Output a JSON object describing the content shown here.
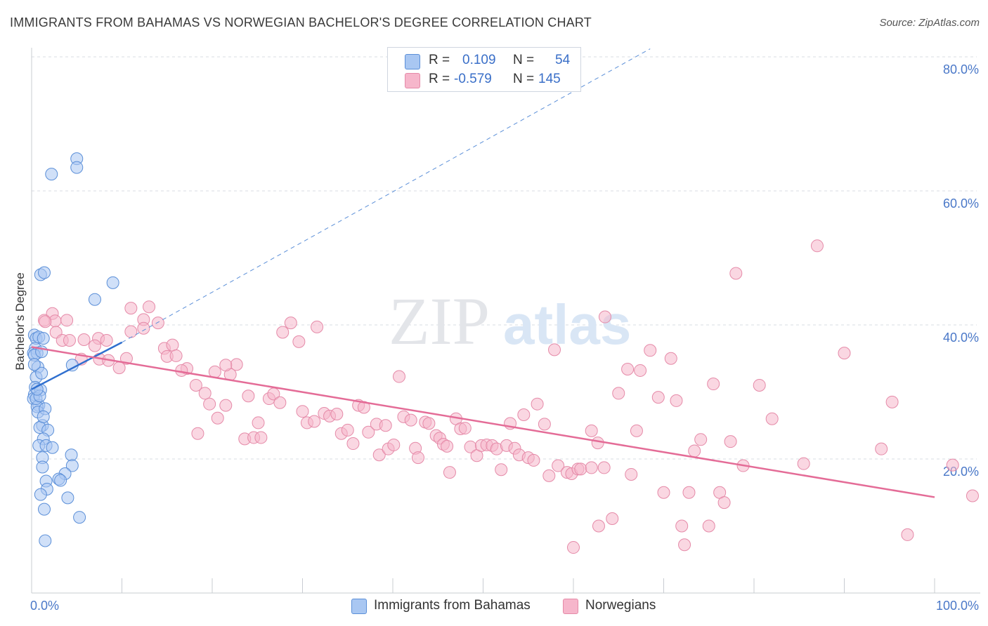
{
  "header": {
    "title": "IMMIGRANTS FROM BAHAMAS VS NORWEGIAN BACHELOR'S DEGREE CORRELATION CHART",
    "source": "Source: ZipAtlas.com"
  },
  "watermark": {
    "part1": "ZIP",
    "part2": "atlas"
  },
  "legend": {
    "r_label": "R =",
    "n_label": "N =",
    "rows": [
      {
        "r": "0.109",
        "n": "54",
        "color": "#a9c7f2"
      },
      {
        "r": "-0.579",
        "n": "145",
        "color": "#f6b6cb"
      }
    ]
  },
  "bottom_legend": [
    {
      "label": "Immigrants from Bahamas",
      "color": "#a9c7f2"
    },
    {
      "label": "Norwegians",
      "color": "#f6b6cb"
    }
  ],
  "colors": {
    "blue_fill": "#a9c7f2",
    "blue_stroke": "#5b8fd8",
    "blue_line": "#2f6fcf",
    "pink_fill": "#f6b6cb",
    "pink_stroke": "#e58aa8",
    "pink_line": "#e46c97",
    "grid": "#d9dde3",
    "tick_label": "#4a78c8"
  },
  "chart_data": {
    "type": "scatter",
    "title": "IMMIGRANTS FROM BAHAMAS VS NORWEGIAN BACHELOR'S DEGREE CORRELATION CHART",
    "ylabel": "Bachelor's Degree",
    "xlabel": "",
    "xlim": [
      0,
      100
    ],
    "ylim": [
      0,
      80
    ],
    "x_tick_labels": [
      "0.0%",
      "100.0%"
    ],
    "y_ticks": [
      {
        "value": 20,
        "label": "20.0%"
      },
      {
        "value": 40,
        "label": "40.0%"
      },
      {
        "value": 60,
        "label": "60.0%"
      },
      {
        "value": 80,
        "label": "80.0%"
      }
    ],
    "series": [
      {
        "name": "Immigrants from Bahamas",
        "R": 0.109,
        "N": 54,
        "trend": {
          "x": [
            0,
            10
          ],
          "y": [
            30.4,
            37.4
          ]
        },
        "trend_extended": {
          "x": [
            10,
            68.5
          ],
          "y": [
            37.4,
            81.2
          ]
        },
        "points": [
          [
            0.3,
            38.5
          ],
          [
            0.5,
            38.0
          ],
          [
            0.8,
            38.2
          ],
          [
            0.4,
            36.5
          ],
          [
            0.2,
            35.8
          ],
          [
            0.6,
            35.8
          ],
          [
            0.3,
            35.5
          ],
          [
            1.1,
            36.0
          ],
          [
            1.3,
            38.0
          ],
          [
            0.7,
            33.7
          ],
          [
            0.5,
            32.2
          ],
          [
            0.4,
            30.7
          ],
          [
            0.3,
            29.6
          ],
          [
            0.2,
            29.0
          ],
          [
            1.0,
            30.3
          ],
          [
            0.8,
            28.0
          ],
          [
            0.6,
            27.8
          ],
          [
            0.7,
            27.0
          ],
          [
            1.5,
            27.5
          ],
          [
            1.2,
            25.0
          ],
          [
            0.9,
            24.7
          ],
          [
            1.8,
            24.3
          ],
          [
            1.3,
            23.0
          ],
          [
            0.8,
            22.0
          ],
          [
            1.6,
            22.0
          ],
          [
            2.3,
            21.7
          ],
          [
            1.2,
            20.2
          ],
          [
            2.2,
            62.5
          ],
          [
            5.0,
            64.8
          ],
          [
            5.0,
            63.5
          ],
          [
            1.0,
            47.5
          ],
          [
            1.4,
            47.8
          ],
          [
            9.0,
            46.3
          ],
          [
            7.0,
            43.8
          ],
          [
            4.5,
            34.0
          ],
          [
            4.4,
            20.6
          ],
          [
            4.5,
            19.0
          ],
          [
            1.2,
            18.8
          ],
          [
            3.7,
            17.8
          ],
          [
            3.0,
            17.0
          ],
          [
            3.2,
            16.8
          ],
          [
            1.6,
            16.7
          ],
          [
            1.7,
            15.5
          ],
          [
            1.0,
            14.7
          ],
          [
            4.0,
            14.2
          ],
          [
            1.4,
            12.5
          ],
          [
            5.3,
            11.3
          ],
          [
            1.5,
            7.8
          ],
          [
            0.5,
            29.0
          ],
          [
            0.9,
            29.4
          ],
          [
            1.1,
            32.8
          ],
          [
            0.3,
            34.1
          ],
          [
            0.6,
            30.4
          ],
          [
            1.3,
            26.3
          ]
        ]
      },
      {
        "name": "Norwegians",
        "R": -0.579,
        "N": 145,
        "trend": {
          "x": [
            0,
            100
          ],
          "y": [
            36.7,
            14.3
          ]
        },
        "points": [
          [
            1.4,
            40.7
          ],
          [
            2.3,
            41.7
          ],
          [
            2.6,
            40.6
          ],
          [
            1.5,
            40.5
          ],
          [
            3.9,
            40.7
          ],
          [
            2.7,
            38.9
          ],
          [
            3.4,
            37.7
          ],
          [
            4.2,
            37.7
          ],
          [
            5.8,
            37.8
          ],
          [
            7.4,
            38.0
          ],
          [
            7.0,
            36.9
          ],
          [
            8.3,
            37.7
          ],
          [
            5.5,
            34.9
          ],
          [
            7.5,
            34.9
          ],
          [
            8.5,
            34.7
          ],
          [
            9.7,
            33.6
          ],
          [
            10.5,
            35.0
          ],
          [
            11.0,
            39.0
          ],
          [
            11.0,
            42.5
          ],
          [
            12.4,
            40.8
          ],
          [
            12.4,
            39.5
          ],
          [
            13.0,
            42.7
          ],
          [
            14.0,
            40.3
          ],
          [
            14.7,
            36.5
          ],
          [
            15.0,
            35.3
          ],
          [
            15.6,
            37.0
          ],
          [
            16.0,
            35.4
          ],
          [
            17.2,
            33.5
          ],
          [
            16.6,
            33.2
          ],
          [
            18.2,
            31.0
          ],
          [
            18.4,
            23.8
          ],
          [
            19.2,
            29.8
          ],
          [
            19.7,
            28.2
          ],
          [
            20.3,
            33.0
          ],
          [
            20.6,
            26.1
          ],
          [
            21.5,
            28.0
          ],
          [
            22.0,
            32.6
          ],
          [
            22.7,
            34.1
          ],
          [
            23.6,
            23.0
          ],
          [
            24.0,
            29.4
          ],
          [
            24.6,
            23.2
          ],
          [
            25.4,
            23.2
          ],
          [
            25.1,
            25.4
          ],
          [
            26.3,
            29.0
          ],
          [
            26.8,
            29.7
          ],
          [
            27.5,
            28.4
          ],
          [
            27.8,
            38.9
          ],
          [
            28.7,
            40.3
          ],
          [
            29.6,
            37.5
          ],
          [
            30.0,
            27.1
          ],
          [
            30.5,
            25.4
          ],
          [
            31.3,
            25.6
          ],
          [
            31.6,
            39.7
          ],
          [
            32.4,
            26.8
          ],
          [
            33.0,
            26.4
          ],
          [
            33.8,
            26.7
          ],
          [
            34.3,
            23.8
          ],
          [
            35.0,
            24.3
          ],
          [
            35.6,
            22.3
          ],
          [
            36.2,
            28.0
          ],
          [
            36.8,
            27.7
          ],
          [
            37.3,
            24.0
          ],
          [
            38.2,
            25.2
          ],
          [
            38.5,
            20.6
          ],
          [
            39.2,
            25.0
          ],
          [
            39.5,
            21.5
          ],
          [
            40.1,
            22.1
          ],
          [
            40.7,
            32.3
          ],
          [
            41.2,
            26.3
          ],
          [
            42.0,
            25.8
          ],
          [
            42.5,
            21.6
          ],
          [
            42.8,
            20.2
          ],
          [
            43.6,
            25.5
          ],
          [
            44.0,
            25.3
          ],
          [
            44.8,
            23.5
          ],
          [
            45.2,
            23.1
          ],
          [
            45.6,
            22.2
          ],
          [
            46.0,
            21.9
          ],
          [
            46.3,
            18.0
          ],
          [
            47.0,
            26.0
          ],
          [
            47.5,
            24.5
          ],
          [
            48.0,
            24.6
          ],
          [
            48.6,
            21.8
          ],
          [
            49.3,
            20.5
          ],
          [
            49.8,
            22.0
          ],
          [
            50.4,
            22.1
          ],
          [
            51.0,
            22.0
          ],
          [
            51.5,
            21.5
          ],
          [
            52.0,
            18.4
          ],
          [
            52.6,
            22.0
          ],
          [
            53.0,
            25.3
          ],
          [
            53.5,
            21.6
          ],
          [
            54.0,
            20.6
          ],
          [
            54.5,
            26.6
          ],
          [
            55.0,
            20.2
          ],
          [
            55.6,
            19.8
          ],
          [
            56.0,
            28.2
          ],
          [
            56.8,
            25.2
          ],
          [
            57.3,
            17.5
          ],
          [
            57.9,
            36.3
          ],
          [
            58.3,
            19.0
          ],
          [
            59.3,
            18.0
          ],
          [
            59.8,
            17.8
          ],
          [
            60.5,
            18.5
          ],
          [
            60.8,
            18.5
          ],
          [
            62.0,
            24.2
          ],
          [
            62.7,
            22.4
          ],
          [
            63.4,
            18.7
          ],
          [
            62.0,
            18.7
          ],
          [
            62.8,
            10.0
          ],
          [
            63.5,
            41.2
          ],
          [
            64.3,
            11.1
          ],
          [
            65.0,
            29.8
          ],
          [
            66.4,
            17.7
          ],
          [
            66.0,
            33.4
          ],
          [
            67.0,
            24.2
          ],
          [
            67.4,
            33.2
          ],
          [
            68.5,
            36.2
          ],
          [
            69.4,
            29.2
          ],
          [
            70.0,
            15.0
          ],
          [
            70.8,
            35.0
          ],
          [
            71.4,
            28.7
          ],
          [
            72.0,
            10.0
          ],
          [
            72.3,
            7.2
          ],
          [
            72.8,
            15.0
          ],
          [
            73.4,
            21.2
          ],
          [
            74.1,
            22.9
          ],
          [
            75.0,
            10.0
          ],
          [
            75.5,
            31.2
          ],
          [
            76.2,
            15.0
          ],
          [
            76.7,
            13.5
          ],
          [
            77.4,
            22.6
          ],
          [
            78.0,
            47.7
          ],
          [
            78.8,
            19.0
          ],
          [
            80.6,
            31.0
          ],
          [
            85.5,
            19.3
          ],
          [
            87.0,
            51.8
          ],
          [
            90.0,
            35.8
          ],
          [
            82.0,
            26.0
          ],
          [
            94.1,
            21.5
          ],
          [
            95.3,
            28.5
          ],
          [
            97.0,
            8.7
          ],
          [
            102.0,
            19.1
          ],
          [
            104.2,
            14.5
          ],
          [
            60.0,
            6.8
          ],
          [
            21.5,
            34.0
          ]
        ]
      }
    ]
  }
}
